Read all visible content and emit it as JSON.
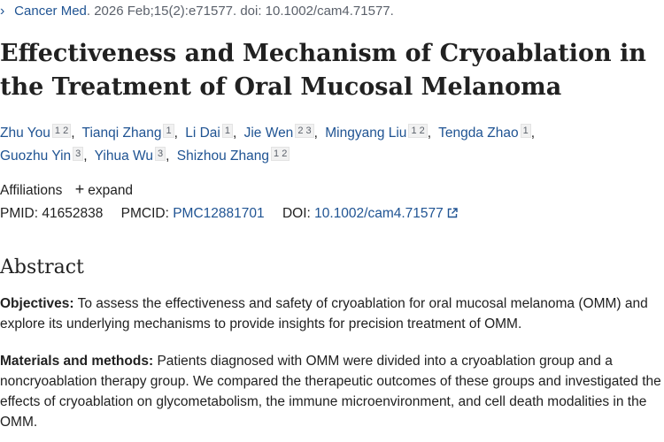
{
  "citation": {
    "journal": "Cancer Med",
    "details": ". 2026 Feb;15(2):e71577. doi: 10.1002/cam4.71577."
  },
  "title": "Effectiveness and Mechanism of Cryoablation in the Treatment of Oral Mucosal Melanoma",
  "authors": [
    {
      "name": "Zhu You",
      "affils": "1 2"
    },
    {
      "name": "Tianqi Zhang",
      "affils": "1"
    },
    {
      "name": "Li Dai",
      "affils": "1"
    },
    {
      "name": "Jie Wen",
      "affils": "2 3"
    },
    {
      "name": "Mingyang Liu",
      "affils": "1 2"
    },
    {
      "name": "Tengda Zhao",
      "affils": "1"
    },
    {
      "name": "Guozhu Yin",
      "affils": "3"
    },
    {
      "name": "Yihua Wu",
      "affils": "3"
    },
    {
      "name": "Shizhou Zhang",
      "affils": "1 2"
    }
  ],
  "affiliations": {
    "label": "Affiliations",
    "expand_label": "expand",
    "plus_icon": "+"
  },
  "identifiers": {
    "pmid_label": "PMID:",
    "pmid": "41652838",
    "pmcid_label": "PMCID:",
    "pmcid": "PMC12881701",
    "doi_label": "DOI:",
    "doi": "10.1002/cam4.71577"
  },
  "abstract": {
    "heading": "Abstract",
    "sections": [
      {
        "label": "Objectives:",
        "text": "To assess the effectiveness and safety of cryoablation for oral mucosal melanoma (OMM) and explore its underlying mechanisms to provide insights for precision treatment of OMM."
      },
      {
        "label": "Materials and methods:",
        "text": "Patients diagnosed with OMM were divided into a cryoablation group and a noncryoablation therapy group. We compared the therapeutic outcomes of these groups and investigated the effects of cryoablation on glycometabolism, the immune microenvironment, and cell death modalities in the OMM."
      }
    ]
  },
  "colors": {
    "link": "#205493",
    "text": "#212121",
    "muted": "#5b616b"
  }
}
